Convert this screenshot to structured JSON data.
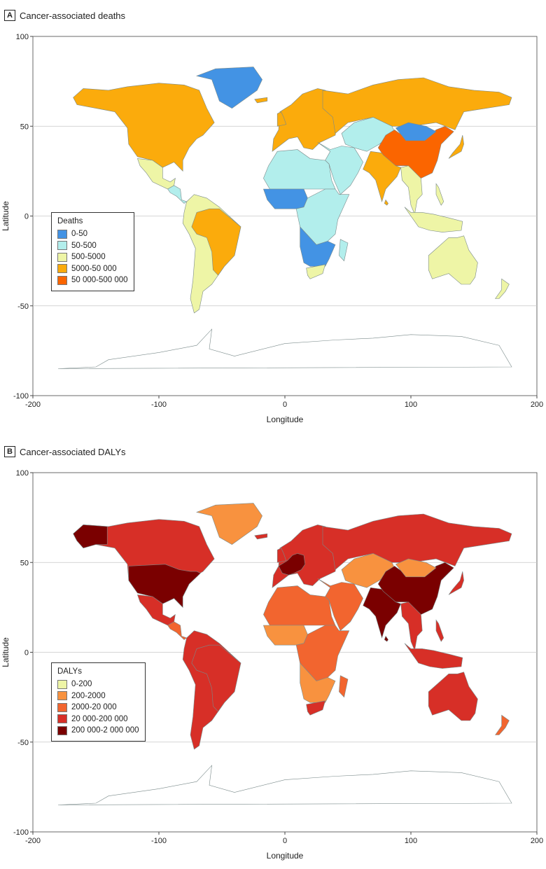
{
  "panels": [
    {
      "letter": "A",
      "title": "Cancer-associated deaths",
      "legend": {
        "title": "Deaths",
        "items": [
          {
            "label": "0-50",
            "color": "#4393e4"
          },
          {
            "label": "50-500",
            "color": "#b2eeec"
          },
          {
            "label": "500-5000",
            "color": "#eef5a6"
          },
          {
            "label": "5000-50 000",
            "color": "#fbab0c"
          },
          {
            "label": "50 000-500 000",
            "color": "#fb6500"
          }
        ]
      },
      "x_axis": {
        "title": "Longitude",
        "ticks": [
          "-200",
          "-100",
          "0",
          "100",
          "200"
        ]
      },
      "y_axis": {
        "title": "Latitude",
        "ticks": [
          "100",
          "50",
          "0",
          "-50",
          "-100"
        ]
      }
    },
    {
      "letter": "B",
      "title": "Cancer-associated DALYs",
      "legend": {
        "title": "DALYs",
        "items": [
          {
            "label": "0-200",
            "color": "#eef5a6"
          },
          {
            "label": "200-2000",
            "color": "#f8923f"
          },
          {
            "label": "2000-20 000",
            "color": "#f2652f"
          },
          {
            "label": "20 000-200 000",
            "color": "#d72f27"
          },
          {
            "label": "200 000-2 000 000",
            "color": "#7a0000"
          }
        ]
      },
      "x_axis": {
        "title": "Longitude",
        "ticks": [
          "-200",
          "-100",
          "0",
          "100",
          "200"
        ]
      },
      "y_axis": {
        "title": "Latitude",
        "ticks": [
          "100",
          "50",
          "0",
          "-50",
          "-100"
        ]
      }
    }
  ],
  "map_regions": {
    "A": {
      "north_america": "#fbab0c",
      "greenland": "#4393e4",
      "mexico": "#eef5a6",
      "central_america": "#b2eeec",
      "south_america": "#eef5a6",
      "brazil": "#fbab0c",
      "europe": "#fbab0c",
      "russia": "#fbab0c",
      "north_africa": "#b2eeec",
      "west_africa": "#4393e4",
      "east_africa": "#b2eeec",
      "southern_africa": "#4393e4",
      "south_africa": "#eef5a6",
      "middle_east": "#b2eeec",
      "central_asia": "#b2eeec",
      "india": "#fbab0c",
      "china": "#fb6500",
      "mongolia": "#4393e4",
      "southeast_asia": "#eef5a6",
      "japan": "#fbab0c",
      "australia": "#eef5a6",
      "new_zealand": "#eef5a6",
      "antarctica": "#ffffff"
    },
    "B": {
      "north_america": "#d72f27",
      "alaska": "#7a0000",
      "usa": "#7a0000",
      "greenland": "#f8923f",
      "mexico": "#d72f27",
      "central_america": "#f2652f",
      "south_america": "#d72f27",
      "brazil": "#d72f27",
      "europe": "#d72f27",
      "western_europe": "#7a0000",
      "russia": "#d72f27",
      "north_africa": "#f2652f",
      "west_africa": "#f8923f",
      "east_africa": "#f2652f",
      "southern_africa": "#f8923f",
      "south_africa": "#d72f27",
      "middle_east": "#f2652f",
      "central_asia": "#f8923f",
      "india": "#7a0000",
      "china": "#7a0000",
      "mongolia": "#f8923f",
      "southeast_asia": "#d72f27",
      "japan": "#d72f27",
      "australia": "#d72f27",
      "new_zealand": "#f2652f",
      "antarctica": "#ffffff"
    }
  }
}
